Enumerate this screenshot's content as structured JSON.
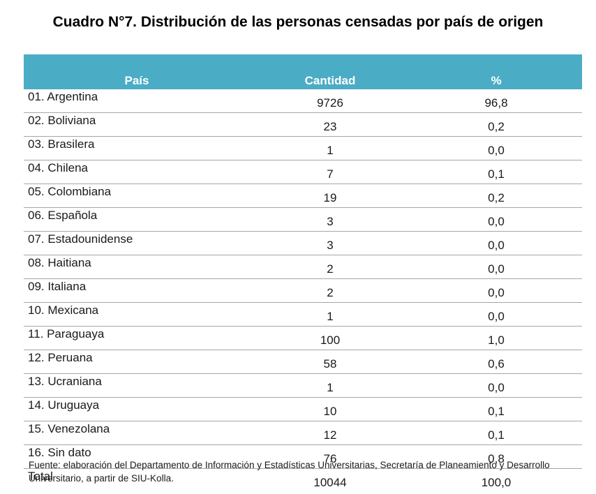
{
  "title": "Cuadro N°7. Distribución de las personas censadas por país de origen",
  "table": {
    "header_color": "#4bacc6",
    "columns": [
      "País",
      "Cantidad",
      "%"
    ],
    "rows": [
      {
        "pais": "01. Argentina",
        "cantidad": "9726",
        "pct": "96,8"
      },
      {
        "pais": "02. Boliviana",
        "cantidad": "23",
        "pct": "0,2"
      },
      {
        "pais": "03. Brasilera",
        "cantidad": "1",
        "pct": "0,0"
      },
      {
        "pais": "04. Chilena",
        "cantidad": "7",
        "pct": "0,1"
      },
      {
        "pais": "05. Colombiana",
        "cantidad": "19",
        "pct": "0,2"
      },
      {
        "pais": "06. Española",
        "cantidad": "3",
        "pct": "0,0"
      },
      {
        "pais": "07. Estadounidense",
        "cantidad": "3",
        "pct": "0,0"
      },
      {
        "pais": "08. Haitiana",
        "cantidad": "2",
        "pct": "0,0"
      },
      {
        "pais": "09. Italiana",
        "cantidad": "2",
        "pct": "0,0"
      },
      {
        "pais": "10. Mexicana",
        "cantidad": "1",
        "pct": "0,0"
      },
      {
        "pais": "11. Paraguaya",
        "cantidad": "100",
        "pct": "1,0"
      },
      {
        "pais": "12. Peruana",
        "cantidad": "58",
        "pct": "0,6"
      },
      {
        "pais": "13. Ucraniana",
        "cantidad": "1",
        "pct": "0,0"
      },
      {
        "pais": "14. Uruguaya",
        "cantidad": "10",
        "pct": "0,1"
      },
      {
        "pais": "15. Venezolana",
        "cantidad": "12",
        "pct": "0,1"
      },
      {
        "pais": "16. Sin dato",
        "cantidad": "76",
        "pct": "0,8"
      }
    ],
    "total": {
      "pais": "Total",
      "cantidad": "10044",
      "pct": "100,0"
    }
  },
  "source": "Fuente: elaboración del Departamento de Información y Estadísticas Universitarias, Secretaría de Planeamiento y Desarrollo Universitario, a partir de  SIU-Kolla."
}
